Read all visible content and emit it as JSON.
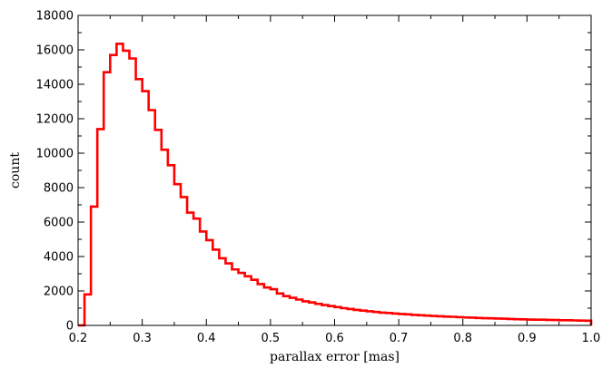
{
  "chart_data": {
    "type": "histogram",
    "title": "",
    "xlabel": "parallax error [mas]",
    "ylabel": "count",
    "xlim": [
      0.2,
      1.0
    ],
    "ylim": [
      0,
      18000
    ],
    "grid": false,
    "legend": "none",
    "line_color": "#ff0000",
    "x_ticks": [
      0.2,
      0.3,
      0.4,
      0.5,
      0.6,
      0.7,
      0.8,
      0.9,
      1.0
    ],
    "x_tick_labels": [
      "0.2",
      "0.3",
      "0.4",
      "0.5",
      "0.6",
      "0.7",
      "0.8",
      "0.9",
      "1.0"
    ],
    "y_ticks": [
      0,
      2000,
      4000,
      6000,
      8000,
      10000,
      12000,
      14000,
      16000,
      18000
    ],
    "y_tick_labels": [
      "0",
      "2000",
      "4000",
      "6000",
      "8000",
      "10000",
      "12000",
      "14000",
      "16000",
      "18000"
    ],
    "bin_edges": [
      0.2,
      0.21,
      0.22,
      0.23,
      0.24,
      0.25,
      0.26,
      0.27,
      0.28,
      0.29,
      0.3,
      0.31,
      0.32,
      0.33,
      0.34,
      0.35,
      0.36,
      0.37,
      0.38,
      0.39,
      0.4,
      0.41,
      0.42,
      0.43,
      0.44,
      0.45,
      0.46,
      0.47,
      0.48,
      0.49,
      0.5,
      0.51,
      0.52,
      0.53,
      0.54,
      0.55,
      0.56,
      0.57,
      0.58,
      0.59,
      0.6,
      0.61,
      0.62,
      0.63,
      0.64,
      0.65,
      0.66,
      0.67,
      0.68,
      0.69,
      0.7,
      0.71,
      0.72,
      0.73,
      0.74,
      0.75,
      0.76,
      0.77,
      0.78,
      0.79,
      0.8,
      0.81,
      0.82,
      0.83,
      0.84,
      0.85,
      0.86,
      0.87,
      0.88,
      0.89,
      0.9,
      0.91,
      0.92,
      0.93,
      0.94,
      0.95,
      0.96,
      0.97,
      0.98,
      0.99,
      1.0
    ],
    "counts": [
      0,
      1800,
      6900,
      11400,
      14700,
      15700,
      16350,
      15950,
      15500,
      14300,
      13600,
      12500,
      11350,
      10200,
      9300,
      8200,
      7450,
      6550,
      6200,
      5450,
      4950,
      4400,
      3900,
      3600,
      3250,
      3050,
      2850,
      2650,
      2400,
      2200,
      2100,
      1850,
      1700,
      1600,
      1500,
      1400,
      1330,
      1250,
      1180,
      1120,
      1060,
      1000,
      950,
      900,
      860,
      820,
      780,
      740,
      720,
      690,
      660,
      640,
      610,
      590,
      570,
      550,
      530,
      510,
      500,
      480,
      460,
      450,
      430,
      420,
      410,
      400,
      390,
      370,
      360,
      350,
      340,
      330,
      330,
      320,
      310,
      300,
      300,
      290,
      280,
      275
    ],
    "tail_count_at_max": 0
  }
}
